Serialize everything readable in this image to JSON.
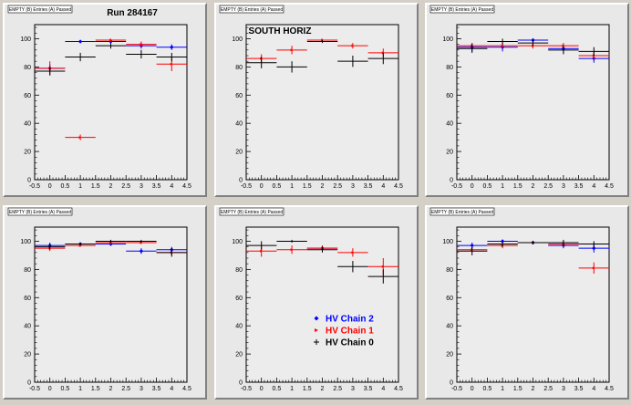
{
  "legend": [
    {
      "label": "HV Chain 2",
      "color": "#0000ff",
      "marker": "diamond"
    },
    {
      "label": "HV Chain 1",
      "color": "#ff0000",
      "marker": "arrow"
    },
    {
      "label": "HV Chain 0",
      "color": "#000000",
      "marker": "plus"
    }
  ],
  "chart_data": [
    {
      "type": "scatter",
      "title": "Run 284167",
      "stat_box": "EMPTY (B) Entries (A) Passed",
      "xlim": [
        -0.5,
        4.5
      ],
      "ylim": [
        0,
        110
      ],
      "xticks": [
        "-0.5",
        "0",
        "0.5",
        "1",
        "1.5",
        "2",
        "2.5",
        "3",
        "3.5",
        "4",
        "4.5"
      ],
      "yticks": [
        "0",
        "20",
        "40",
        "60",
        "80",
        "100"
      ],
      "series": [
        {
          "name": "HV Chain 2",
          "color": "#0000ff",
          "x": [
            0,
            1,
            2,
            3,
            4
          ],
          "y": [
            79,
            98,
            98,
            95,
            94
          ],
          "yerr": [
            3,
            1,
            1,
            2,
            2
          ]
        },
        {
          "name": "HV Chain 1",
          "color": "#ff0000",
          "x": [
            0,
            1,
            2,
            3,
            4
          ],
          "y": [
            79,
            30,
            99,
            96,
            82
          ],
          "yerr": [
            5,
            2,
            1,
            2,
            5
          ]
        },
        {
          "name": "HV Chain 0",
          "color": "#000000",
          "x": [
            0,
            1,
            2,
            3,
            4
          ],
          "y": [
            77,
            87,
            95,
            89,
            87
          ],
          "yerr": [
            3,
            3,
            2,
            3,
            3
          ]
        }
      ]
    },
    {
      "type": "scatter",
      "title": "SOUTH HORIZ",
      "stat_box": "EMPTY (B) Entries (A) Passed",
      "xlim": [
        -0.5,
        4.5
      ],
      "ylim": [
        0,
        110
      ],
      "xticks": [
        "-0.5",
        "0",
        "0.5",
        "1",
        "1.5",
        "2",
        "2.5",
        "3",
        "3.5",
        "4",
        "4.5"
      ],
      "yticks": [
        "0",
        "20",
        "40",
        "60",
        "80",
        "100"
      ],
      "series": [
        {
          "name": "HV Chain 2",
          "color": "#0000ff",
          "x": [],
          "y": [],
          "yerr": []
        },
        {
          "name": "HV Chain 1",
          "color": "#ff0000",
          "x": [
            0,
            1,
            2,
            3,
            4
          ],
          "y": [
            86,
            92,
            99,
            95,
            90
          ],
          "yerr": [
            3,
            3,
            1,
            2,
            3
          ]
        },
        {
          "name": "HV Chain 0",
          "color": "#000000",
          "x": [
            0,
            1,
            2,
            3,
            4
          ],
          "y": [
            83,
            80,
            98,
            84,
            86
          ],
          "yerr": [
            4,
            4,
            1,
            4,
            4
          ]
        }
      ]
    },
    {
      "type": "scatter",
      "title": "",
      "stat_box": "EMPTY (B) Entries (A) Passed",
      "xlim": [
        -0.5,
        4.5
      ],
      "ylim": [
        0,
        110
      ],
      "xticks": [
        "-0.5",
        "0",
        "0.5",
        "1",
        "1.5",
        "2",
        "2.5",
        "3",
        "3.5",
        "4",
        "4.5"
      ],
      "yticks": [
        "0",
        "20",
        "40",
        "60",
        "80",
        "100"
      ],
      "series": [
        {
          "name": "HV Chain 2",
          "color": "#0000ff",
          "x": [
            0,
            1,
            2,
            3,
            4
          ],
          "y": [
            94,
            94,
            99,
            93,
            86
          ],
          "yerr": [
            3,
            3,
            1,
            2,
            3
          ]
        },
        {
          "name": "HV Chain 1",
          "color": "#ff0000",
          "x": [
            0,
            1,
            2,
            3,
            4
          ],
          "y": [
            95,
            95,
            95,
            95,
            88
          ],
          "yerr": [
            2,
            2,
            2,
            2,
            3
          ]
        },
        {
          "name": "HV Chain 0",
          "color": "#000000",
          "x": [
            0,
            1,
            2,
            3,
            4
          ],
          "y": [
            93,
            98,
            97,
            92,
            91
          ],
          "yerr": [
            3,
            2,
            2,
            3,
            3
          ]
        }
      ]
    },
    {
      "type": "scatter",
      "title": "",
      "stat_box": "EMPTY (B) Entries (A) Passed",
      "xlim": [
        -0.5,
        4.5
      ],
      "ylim": [
        0,
        110
      ],
      "xticks": [
        "-0.5",
        "0",
        "0.5",
        "1",
        "1.5",
        "2",
        "2.5",
        "3",
        "3.5",
        "4",
        "4.5"
      ],
      "yticks": [
        "0",
        "20",
        "40",
        "60",
        "80",
        "100"
      ],
      "series": [
        {
          "name": "HV Chain 2",
          "color": "#0000ff",
          "x": [
            0,
            1,
            2,
            3,
            4
          ],
          "y": [
            97,
            98,
            98,
            93,
            94
          ],
          "yerr": [
            2,
            1,
            1,
            2,
            2
          ]
        },
        {
          "name": "HV Chain 1",
          "color": "#ff0000",
          "x": [
            0,
            1,
            2,
            3,
            4
          ],
          "y": [
            95,
            97,
            99,
            99,
            92
          ],
          "yerr": [
            2,
            1,
            1,
            1,
            2
          ]
        },
        {
          "name": "HV Chain 0",
          "color": "#000000",
          "x": [
            0,
            1,
            2,
            3,
            4
          ],
          "y": [
            96,
            98,
            100,
            100,
            92
          ],
          "yerr": [
            2,
            1,
            1,
            1,
            3
          ]
        }
      ]
    },
    {
      "type": "scatter",
      "title": "",
      "stat_box": "EMPTY (B) Entries (A) Passed",
      "xlim": [
        -0.5,
        4.5
      ],
      "ylim": [
        0,
        110
      ],
      "xticks": [
        "-0.5",
        "0",
        "0.5",
        "1",
        "1.5",
        "2",
        "2.5",
        "3",
        "3.5",
        "4",
        "4.5"
      ],
      "yticks": [
        "0",
        "20",
        "40",
        "60",
        "80",
        "100"
      ],
      "series": [
        {
          "name": "HV Chain 2",
          "color": "#0000ff",
          "x": [
            2
          ],
          "y": [
            95
          ],
          "yerr": [
            2
          ]
        },
        {
          "name": "HV Chain 1",
          "color": "#ff0000",
          "x": [
            0,
            1,
            2,
            3,
            4
          ],
          "y": [
            93,
            94,
            95,
            92,
            82
          ],
          "yerr": [
            4,
            3,
            2,
            3,
            6
          ]
        },
        {
          "name": "HV Chain 0",
          "color": "#000000",
          "x": [
            0,
            1,
            2,
            3,
            4
          ],
          "y": [
            97,
            100,
            94,
            82,
            75
          ],
          "yerr": [
            3,
            1,
            2,
            4,
            5
          ]
        }
      ]
    },
    {
      "type": "scatter",
      "title": "",
      "stat_box": "EMPTY (B) Entries (A) Passed",
      "xlim": [
        -0.5,
        4.5
      ],
      "ylim": [
        0,
        110
      ],
      "xticks": [
        "-0.5",
        "0",
        "0.5",
        "1",
        "1.5",
        "2",
        "2.5",
        "3",
        "3.5",
        "4",
        "4.5"
      ],
      "yticks": [
        "0",
        "20",
        "40",
        "60",
        "80",
        "100"
      ],
      "series": [
        {
          "name": "HV Chain 2",
          "color": "#0000ff",
          "x": [
            0,
            1,
            2,
            3,
            4
          ],
          "y": [
            97,
            100,
            99,
            97,
            95
          ],
          "yerr": [
            2,
            1,
            1,
            2,
            3
          ]
        },
        {
          "name": "HV Chain 1",
          "color": "#ff0000",
          "x": [
            0,
            1,
            2,
            3,
            4
          ],
          "y": [
            94,
            97,
            99,
            98,
            81
          ],
          "yerr": [
            2,
            2,
            1,
            2,
            4
          ]
        },
        {
          "name": "HV Chain 0",
          "color": "#000000",
          "x": [
            0,
            1,
            2,
            3,
            4
          ],
          "y": [
            93,
            98,
            99,
            99,
            98
          ],
          "yerr": [
            3,
            2,
            1,
            2,
            2
          ]
        }
      ]
    }
  ]
}
